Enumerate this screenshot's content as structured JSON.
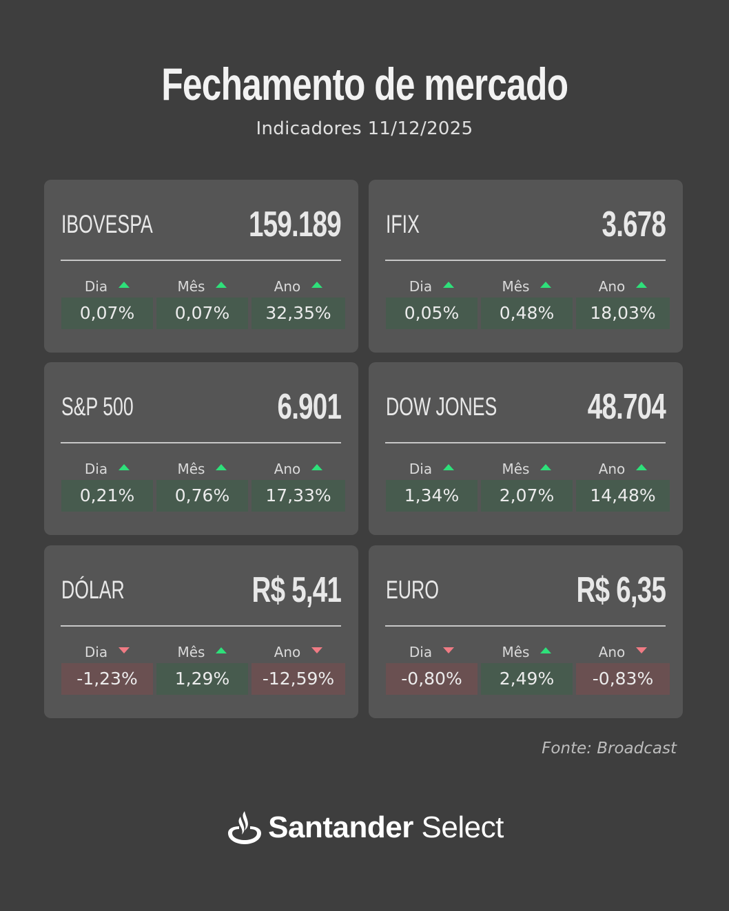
{
  "header": {
    "title": "Fechamento de mercado",
    "subtitle": "Indicadores 11/12/2025"
  },
  "colors": {
    "background": "#3e3e3e",
    "card": "#555555",
    "up_arrow": "#2ee07a",
    "down_arrow": "#f07b84",
    "positive_cell": "#475b4e",
    "negative_cell": "#6a5051"
  },
  "cards": [
    {
      "name": "IBOVESPA",
      "value": "159.189",
      "periods": [
        {
          "label": "Dia",
          "direction": "up",
          "pct": "0,07%"
        },
        {
          "label": "Mês",
          "direction": "up",
          "pct": "0,07%"
        },
        {
          "label": "Ano",
          "direction": "up",
          "pct": "32,35%"
        }
      ]
    },
    {
      "name": "IFIX",
      "value": "3.678",
      "periods": [
        {
          "label": "Dia",
          "direction": "up",
          "pct": "0,05%"
        },
        {
          "label": "Mês",
          "direction": "up",
          "pct": "0,48%"
        },
        {
          "label": "Ano",
          "direction": "up",
          "pct": "18,03%"
        }
      ]
    },
    {
      "name": "S&P 500",
      "value": "6.901",
      "periods": [
        {
          "label": "Dia",
          "direction": "up",
          "pct": "0,21%"
        },
        {
          "label": "Mês",
          "direction": "up",
          "pct": "0,76%"
        },
        {
          "label": "Ano",
          "direction": "up",
          "pct": "17,33%"
        }
      ]
    },
    {
      "name": "DOW JONES",
      "value": "48.704",
      "periods": [
        {
          "label": "Dia",
          "direction": "up",
          "pct": "1,34%"
        },
        {
          "label": "Mês",
          "direction": "up",
          "pct": "2,07%"
        },
        {
          "label": "Ano",
          "direction": "up",
          "pct": "14,48%"
        }
      ]
    },
    {
      "name": "DÓLAR",
      "value": "R$ 5,41",
      "periods": [
        {
          "label": "Dia",
          "direction": "down",
          "pct": "-1,23%"
        },
        {
          "label": "Mês",
          "direction": "up",
          "pct": "1,29%"
        },
        {
          "label": "Ano",
          "direction": "down",
          "pct": "-12,59%"
        }
      ]
    },
    {
      "name": "EURO",
      "value": "R$ 6,35",
      "periods": [
        {
          "label": "Dia",
          "direction": "down",
          "pct": "-0,80%"
        },
        {
          "label": "Mês",
          "direction": "up",
          "pct": "2,49%"
        },
        {
          "label": "Ano",
          "direction": "down",
          "pct": "-0,83%"
        }
      ]
    }
  ],
  "source": "Fonte: Broadcast",
  "brand": {
    "bold_part": "Santander",
    "light_part": " Select",
    "icon": "santander-flame-icon"
  }
}
